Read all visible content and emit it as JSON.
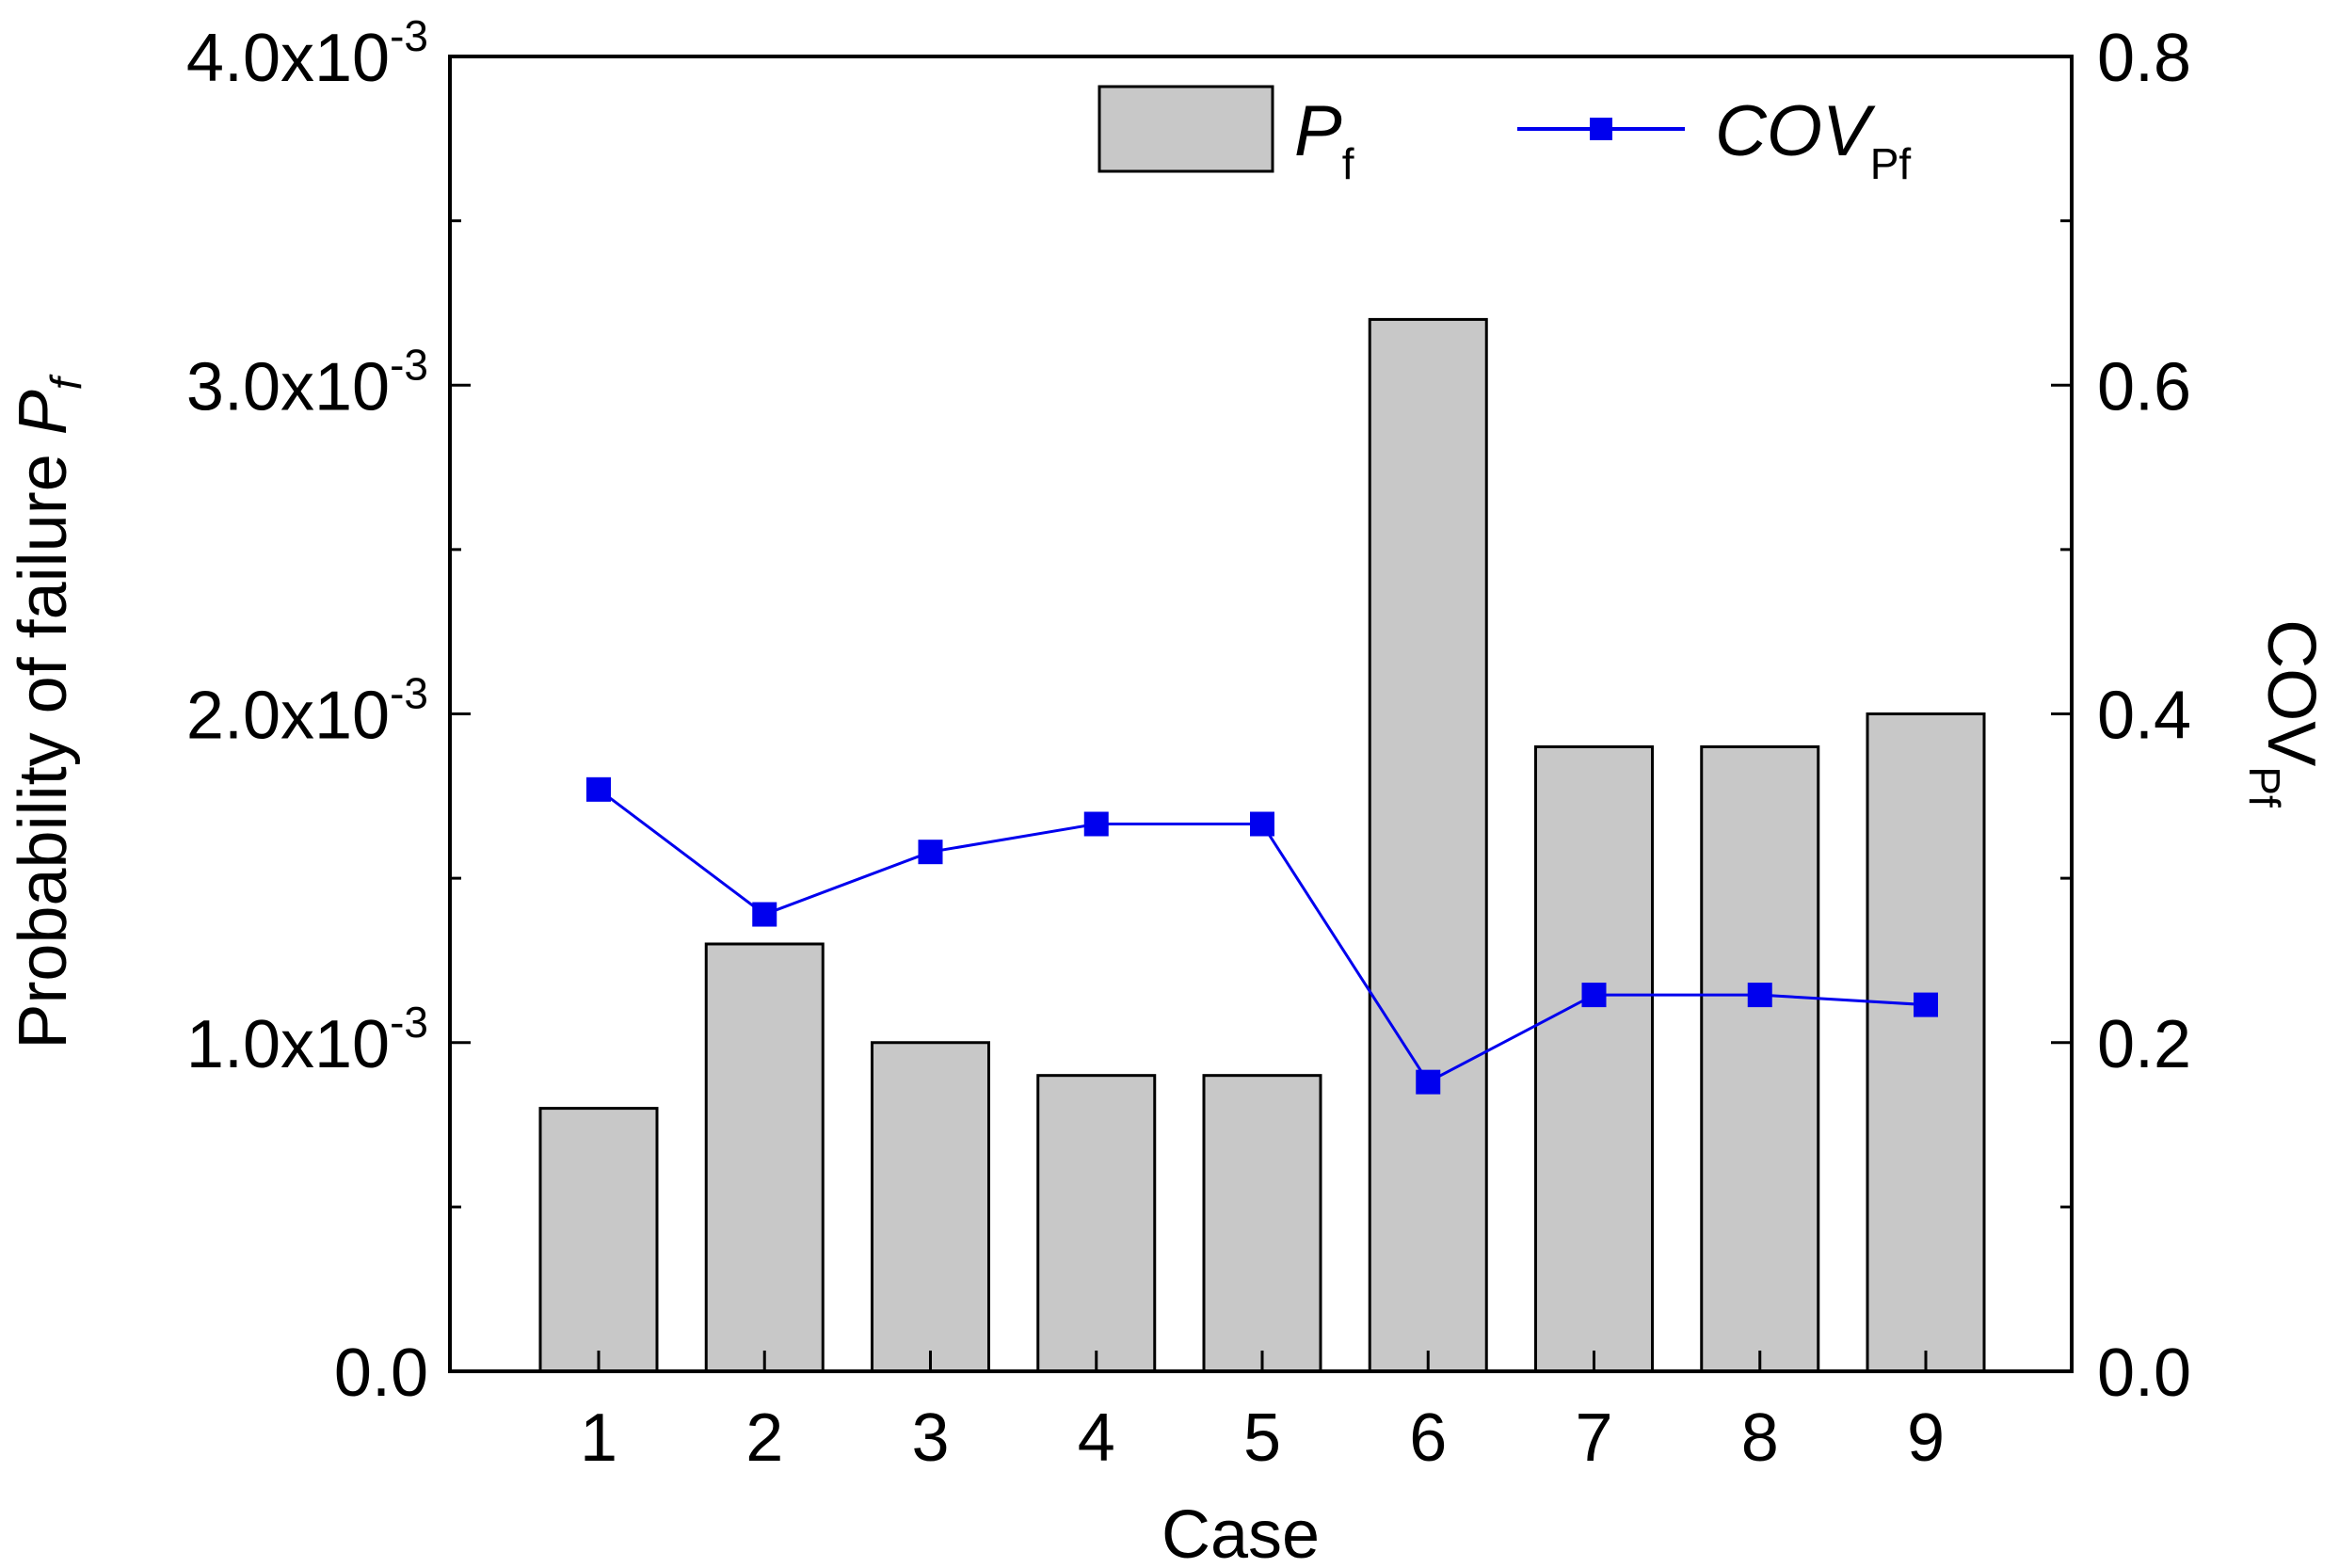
{
  "colors": {
    "bar_fill": "#c8c8c8",
    "bar_stroke": "#000000",
    "line": "#0000ee",
    "axis": "#000000"
  },
  "chart_data": {
    "type": "bar+line",
    "categories": [
      "1",
      "2",
      "3",
      "4",
      "5",
      "6",
      "7",
      "8",
      "9"
    ],
    "series": [
      {
        "name": "Pf",
        "type": "bar",
        "axis": "left",
        "values": [
          0.0008,
          0.0013,
          0.001,
          0.0009,
          0.0009,
          0.0032,
          0.0019,
          0.0019,
          0.002
        ]
      },
      {
        "name": "COVPf",
        "type": "line",
        "axis": "right",
        "marker": "square",
        "values": [
          0.354,
          0.278,
          0.316,
          0.333,
          0.333,
          0.176,
          0.229,
          0.229,
          0.223
        ]
      }
    ],
    "xlabel": "Case",
    "ylabel_left": "Probability of failure",
    "ylabel_left_symbol": "P",
    "ylabel_left_sub": "f",
    "ylabel_right": "COV",
    "ylabel_right_sub": "Pf",
    "ylim_left": [
      0,
      0.004
    ],
    "ylim_right": [
      0,
      0.8
    ],
    "left_ticks": [
      {
        "base": "0.0",
        "exp": ""
      },
      {
        "base": "1.0x10",
        "exp": "-3"
      },
      {
        "base": "2.0x10",
        "exp": "-3"
      },
      {
        "base": "3.0x10",
        "exp": "-3"
      },
      {
        "base": "4.0x10",
        "exp": "-3"
      }
    ],
    "right_ticks": [
      "0.0",
      "0.2",
      "0.4",
      "0.6",
      "0.8"
    ],
    "legend": {
      "position": "top-right",
      "bar_label": "P",
      "bar_label_sub": "f",
      "line_label": "COV",
      "line_label_sub": "Pf"
    }
  }
}
